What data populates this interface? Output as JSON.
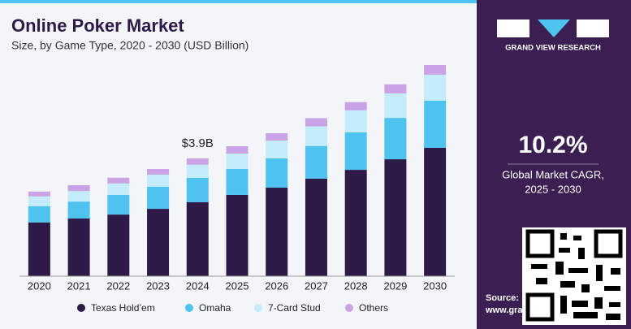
{
  "chart_data": {
    "type": "stacked-bar",
    "title": "Online Poker Market",
    "subtitle": "Size, by Game Type, 2020 - 2030 (USD Billion)",
    "categories": [
      "2020",
      "2021",
      "2022",
      "2023",
      "2024",
      "2025",
      "2026",
      "2027",
      "2028",
      "2029",
      "2030"
    ],
    "series": [
      {
        "name": "Texas Hold’em",
        "color": "#2e1a47",
        "values": [
          1.78,
          1.91,
          2.04,
          2.23,
          2.45,
          2.69,
          2.93,
          3.23,
          3.52,
          3.87,
          4.25
        ]
      },
      {
        "name": "Omaha",
        "color": "#4fc3f0",
        "values": [
          0.54,
          0.56,
          0.65,
          0.73,
          0.81,
          0.86,
          0.97,
          1.08,
          1.24,
          1.37,
          1.56
        ]
      },
      {
        "name": "7-Card Stud",
        "color": "#c5ecfb",
        "values": [
          0.32,
          0.35,
          0.38,
          0.4,
          0.43,
          0.51,
          0.59,
          0.65,
          0.73,
          0.81,
          0.86
        ]
      },
      {
        "name": "Others",
        "color": "#c9a3e6",
        "values": [
          0.16,
          0.19,
          0.19,
          0.19,
          0.21,
          0.24,
          0.24,
          0.27,
          0.27,
          0.3,
          0.32
        ]
      }
    ],
    "annotation": {
      "x": "2024",
      "text": "$3.9B"
    },
    "legend": "bottom"
  },
  "panel": {
    "brand": "GRAND VIEW RESEARCH",
    "cagr": "10.2%",
    "cagr_label": "Global Market CAGR,",
    "period": "2025 - 2030",
    "source": "Source:",
    "url": "www.gra"
  }
}
